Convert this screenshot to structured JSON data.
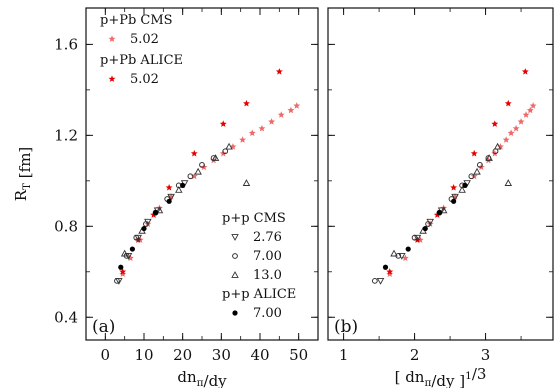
{
  "chart_data": [
    {
      "type": "scatter",
      "panel_label": "(a)",
      "ylabel": "R_T [fm]",
      "xlabel": "dn_π/dy",
      "xlim": [
        -5,
        55
      ],
      "ylim": [
        0.3,
        1.76
      ],
      "xticks": [
        0,
        10,
        20,
        30,
        40,
        50
      ],
      "yticks": [
        0.4,
        0.8,
        1.2,
        1.6
      ],
      "xtick_labels": [
        "0",
        "10",
        "20",
        "30",
        "40",
        "50"
      ],
      "ytick_labels": [
        "0.4",
        "0.8",
        "1.2",
        "1.6"
      ],
      "legend": [
        {
          "group": "p+Pb CMS",
          "entries": [
            {
              "series": "pPb_CMS_502",
              "label": "5.02"
            }
          ]
        },
        {
          "group": "p+Pb ALICE",
          "entries": [
            {
              "series": "pPb_ALICE_502",
              "label": "5.02"
            }
          ]
        },
        {
          "group": "p+p CMS",
          "entries": [
            {
              "series": "pp_CMS_276",
              "label": "2.76"
            },
            {
              "series": "pp_CMS_700",
              "label": "7.00"
            },
            {
              "series": "pp_CMS_130",
              "label": "13.0"
            }
          ]
        },
        {
          "group": "p+p ALICE",
          "entries": [
            {
              "series": "pp_ALICE_700",
              "label": "7.00"
            }
          ]
        }
      ],
      "series": [
        {
          "id": "pPb_CMS_502",
          "marker": "star",
          "color": "#ee6a6a",
          "x": [
            4.5,
            6.5,
            9,
            11,
            14,
            17,
            20,
            23,
            25.5,
            28,
            30.5,
            33,
            35.5,
            38,
            40.5,
            43,
            45.5,
            48,
            49.5
          ],
          "y": [
            0.59,
            0.66,
            0.74,
            0.81,
            0.88,
            0.93,
            0.98,
            1.02,
            1.06,
            1.09,
            1.12,
            1.15,
            1.18,
            1.21,
            1.23,
            1.26,
            1.29,
            1.31,
            1.33
          ]
        },
        {
          "id": "pPb_ALICE_502",
          "marker": "star",
          "color": "#e60000",
          "x": [
            4.5,
            8.5,
            12.5,
            16.5,
            23,
            30.5,
            36.5,
            45
          ],
          "y": [
            0.6,
            0.74,
            0.85,
            0.97,
            1.12,
            1.25,
            1.34,
            1.48
          ]
        },
        {
          "id": "pp_CMS_276",
          "marker": "triangle-down",
          "color": "#333333",
          "x": [
            3.5,
            6,
            8.5,
            11,
            13.5,
            17,
            20.5
          ],
          "y": [
            0.56,
            0.67,
            0.75,
            0.82,
            0.87,
            0.93,
            0.99
          ]
        },
        {
          "id": "pp_CMS_700",
          "marker": "circle-open",
          "color": "#333333",
          "x": [
            3,
            5.5,
            8,
            10.5,
            13,
            16,
            19,
            22,
            25,
            28,
            31
          ],
          "y": [
            0.56,
            0.67,
            0.75,
            0.81,
            0.86,
            0.92,
            0.98,
            1.02,
            1.07,
            1.1,
            1.13
          ]
        },
        {
          "id": "pp_CMS_130",
          "marker": "triangle-up",
          "color": "#333333",
          "x": [
            5,
            9.5,
            14,
            19,
            24,
            28.5,
            32,
            36.5
          ],
          "y": [
            0.68,
            0.78,
            0.87,
            0.96,
            1.04,
            1.1,
            1.15,
            0.99
          ]
        },
        {
          "id": "pp_ALICE_700",
          "marker": "circle-filled",
          "color": "#000000",
          "x": [
            4,
            7,
            10,
            13,
            16.5,
            20
          ],
          "y": [
            0.62,
            0.7,
            0.79,
            0.86,
            0.91,
            0.98
          ]
        }
      ]
    },
    {
      "type": "scatter",
      "panel_label": "(b)",
      "xlabel": "[ dn_π/dy ]^1/3",
      "xlim": [
        0.78,
        3.95
      ],
      "ylim": [
        0.3,
        1.76
      ],
      "xticks": [
        1,
        2,
        3
      ],
      "yticks": [
        0.4,
        0.8,
        1.2,
        1.6
      ],
      "xtick_labels": [
        "1",
        "2",
        "3"
      ],
      "series": [
        {
          "id": "pPb_CMS_502",
          "marker": "star",
          "color": "#ee6a6a",
          "x": [
            1.65,
            1.87,
            2.08,
            2.22,
            2.41,
            2.57,
            2.71,
            2.84,
            2.94,
            3.04,
            3.13,
            3.21,
            3.29,
            3.36,
            3.43,
            3.5,
            3.57,
            3.63,
            3.67
          ],
          "y": [
            0.59,
            0.66,
            0.74,
            0.81,
            0.88,
            0.93,
            0.98,
            1.02,
            1.06,
            1.09,
            1.12,
            1.15,
            1.18,
            1.21,
            1.23,
            1.26,
            1.29,
            1.31,
            1.33
          ]
        },
        {
          "id": "pPb_ALICE_502",
          "marker": "star",
          "color": "#e60000",
          "x": [
            1.65,
            2.04,
            2.32,
            2.55,
            2.84,
            3.13,
            3.32,
            3.56
          ],
          "y": [
            0.6,
            0.74,
            0.85,
            0.97,
            1.12,
            1.25,
            1.34,
            1.48
          ]
        },
        {
          "id": "pp_CMS_276",
          "marker": "triangle-down",
          "color": "#333333",
          "x": [
            1.52,
            1.82,
            2.04,
            2.22,
            2.38,
            2.57,
            2.74
          ],
          "y": [
            0.56,
            0.67,
            0.75,
            0.82,
            0.87,
            0.93,
            0.99
          ]
        },
        {
          "id": "pp_CMS_700",
          "marker": "circle-open",
          "color": "#333333",
          "x": [
            1.44,
            1.77,
            2.0,
            2.19,
            2.35,
            2.52,
            2.67,
            2.8,
            2.92,
            3.04,
            3.14
          ],
          "y": [
            0.56,
            0.67,
            0.75,
            0.81,
            0.86,
            0.92,
            0.98,
            1.02,
            1.07,
            1.1,
            1.13
          ]
        },
        {
          "id": "pp_CMS_130",
          "marker": "triangle-up",
          "color": "#333333",
          "x": [
            1.71,
            2.12,
            2.41,
            2.67,
            2.88,
            3.05,
            3.17,
            3.32
          ],
          "y": [
            0.68,
            0.78,
            0.87,
            0.96,
            1.04,
            1.1,
            1.15,
            0.99
          ]
        },
        {
          "id": "pp_ALICE_700",
          "marker": "circle-filled",
          "color": "#000000",
          "x": [
            1.59,
            1.91,
            2.15,
            2.35,
            2.55,
            2.71
          ],
          "y": [
            0.62,
            0.7,
            0.79,
            0.86,
            0.91,
            0.98
          ]
        }
      ]
    }
  ]
}
